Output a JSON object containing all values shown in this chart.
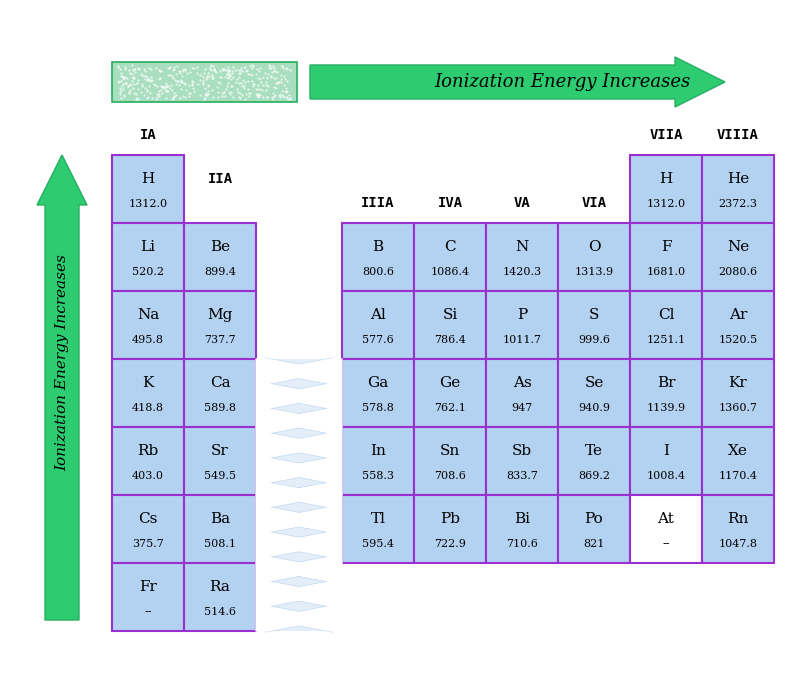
{
  "bg_color": "#ffffff",
  "cell_border": "#9b30d0",
  "arrow_color": "#2ecc71",
  "arrow_edge": "#27ae60",
  "horiz_arrow_label": "Ionization Energy Increases",
  "vert_arrow_label": "Ionization Energy Increases",
  "fill_blue": "#b3d1f0",
  "fill_light": "#d6eaf8",
  "fill_white": "#ffffff",
  "table": [
    [
      {
        "sym": "H",
        "val": "1312.0",
        "col": 0,
        "row": 0,
        "fill": "blue"
      },
      {
        "sym": "H",
        "val": "1312.0",
        "col": 6,
        "row": 0,
        "fill": "blue"
      },
      {
        "sym": "He",
        "val": "2372.3",
        "col": 7,
        "row": 0,
        "fill": "blue"
      }
    ],
    [
      {
        "sym": "Li",
        "val": "520.2",
        "col": 0,
        "row": 1,
        "fill": "blue"
      },
      {
        "sym": "Be",
        "val": "899.4",
        "col": 1,
        "row": 1,
        "fill": "blue"
      },
      {
        "sym": "B",
        "val": "800.6",
        "col": 2,
        "row": 1,
        "fill": "blue"
      },
      {
        "sym": "C",
        "val": "1086.4",
        "col": 3,
        "row": 1,
        "fill": "blue"
      },
      {
        "sym": "N",
        "val": "1420.3",
        "col": 4,
        "row": 1,
        "fill": "blue"
      },
      {
        "sym": "O",
        "val": "1313.9",
        "col": 5,
        "row": 1,
        "fill": "blue"
      },
      {
        "sym": "F",
        "val": "1681.0",
        "col": 6,
        "row": 1,
        "fill": "blue"
      },
      {
        "sym": "Ne",
        "val": "2080.6",
        "col": 7,
        "row": 1,
        "fill": "blue"
      }
    ],
    [
      {
        "sym": "Na",
        "val": "495.8",
        "col": 0,
        "row": 2,
        "fill": "blue"
      },
      {
        "sym": "Mg",
        "val": "737.7",
        "col": 1,
        "row": 2,
        "fill": "blue"
      },
      {
        "sym": "Al",
        "val": "577.6",
        "col": 2,
        "row": 2,
        "fill": "blue"
      },
      {
        "sym": "Si",
        "val": "786.4",
        "col": 3,
        "row": 2,
        "fill": "blue"
      },
      {
        "sym": "P",
        "val": "1011.7",
        "col": 4,
        "row": 2,
        "fill": "blue"
      },
      {
        "sym": "S",
        "val": "999.6",
        "col": 5,
        "row": 2,
        "fill": "blue"
      },
      {
        "sym": "Cl",
        "val": "1251.1",
        "col": 6,
        "row": 2,
        "fill": "blue"
      },
      {
        "sym": "Ar",
        "val": "1520.5",
        "col": 7,
        "row": 2,
        "fill": "blue"
      }
    ],
    [
      {
        "sym": "K",
        "val": "418.8",
        "col": 0,
        "row": 3,
        "fill": "blue"
      },
      {
        "sym": "Ca",
        "val": "589.8",
        "col": 1,
        "row": 3,
        "fill": "blue"
      },
      {
        "sym": "Ga",
        "val": "578.8",
        "col": 2,
        "row": 3,
        "fill": "blue"
      },
      {
        "sym": "Ge",
        "val": "762.1",
        "col": 3,
        "row": 3,
        "fill": "blue"
      },
      {
        "sym": "As",
        "val": "947",
        "col": 4,
        "row": 3,
        "fill": "blue"
      },
      {
        "sym": "Se",
        "val": "940.9",
        "col": 5,
        "row": 3,
        "fill": "blue"
      },
      {
        "sym": "Br",
        "val": "1139.9",
        "col": 6,
        "row": 3,
        "fill": "blue"
      },
      {
        "sym": "Kr",
        "val": "1360.7",
        "col": 7,
        "row": 3,
        "fill": "blue"
      }
    ],
    [
      {
        "sym": "Rb",
        "val": "403.0",
        "col": 0,
        "row": 4,
        "fill": "blue"
      },
      {
        "sym": "Sr",
        "val": "549.5",
        "col": 1,
        "row": 4,
        "fill": "blue"
      },
      {
        "sym": "In",
        "val": "558.3",
        "col": 2,
        "row": 4,
        "fill": "blue"
      },
      {
        "sym": "Sn",
        "val": "708.6",
        "col": 3,
        "row": 4,
        "fill": "blue"
      },
      {
        "sym": "Sb",
        "val": "833.7",
        "col": 4,
        "row": 4,
        "fill": "blue"
      },
      {
        "sym": "Te",
        "val": "869.2",
        "col": 5,
        "row": 4,
        "fill": "blue"
      },
      {
        "sym": "I",
        "val": "1008.4",
        "col": 6,
        "row": 4,
        "fill": "blue"
      },
      {
        "sym": "Xe",
        "val": "1170.4",
        "col": 7,
        "row": 4,
        "fill": "blue"
      }
    ],
    [
      {
        "sym": "Cs",
        "val": "375.7",
        "col": 0,
        "row": 5,
        "fill": "blue"
      },
      {
        "sym": "Ba",
        "val": "508.1",
        "col": 1,
        "row": 5,
        "fill": "blue"
      },
      {
        "sym": "Tl",
        "val": "595.4",
        "col": 2,
        "row": 5,
        "fill": "blue"
      },
      {
        "sym": "Pb",
        "val": "722.9",
        "col": 3,
        "row": 5,
        "fill": "blue"
      },
      {
        "sym": "Bi",
        "val": "710.6",
        "col": 4,
        "row": 5,
        "fill": "blue"
      },
      {
        "sym": "Po",
        "val": "821",
        "col": 5,
        "row": 5,
        "fill": "blue"
      },
      {
        "sym": "At",
        "val": "--",
        "col": 6,
        "row": 5,
        "fill": "white"
      },
      {
        "sym": "Rn",
        "val": "1047.8",
        "col": 7,
        "row": 5,
        "fill": "blue"
      }
    ],
    [
      {
        "sym": "Fr",
        "val": "--",
        "col": 0,
        "row": 6,
        "fill": "blue"
      },
      {
        "sym": "Ra",
        "val": "514.6",
        "col": 1,
        "row": 6,
        "fill": "blue"
      }
    ]
  ]
}
